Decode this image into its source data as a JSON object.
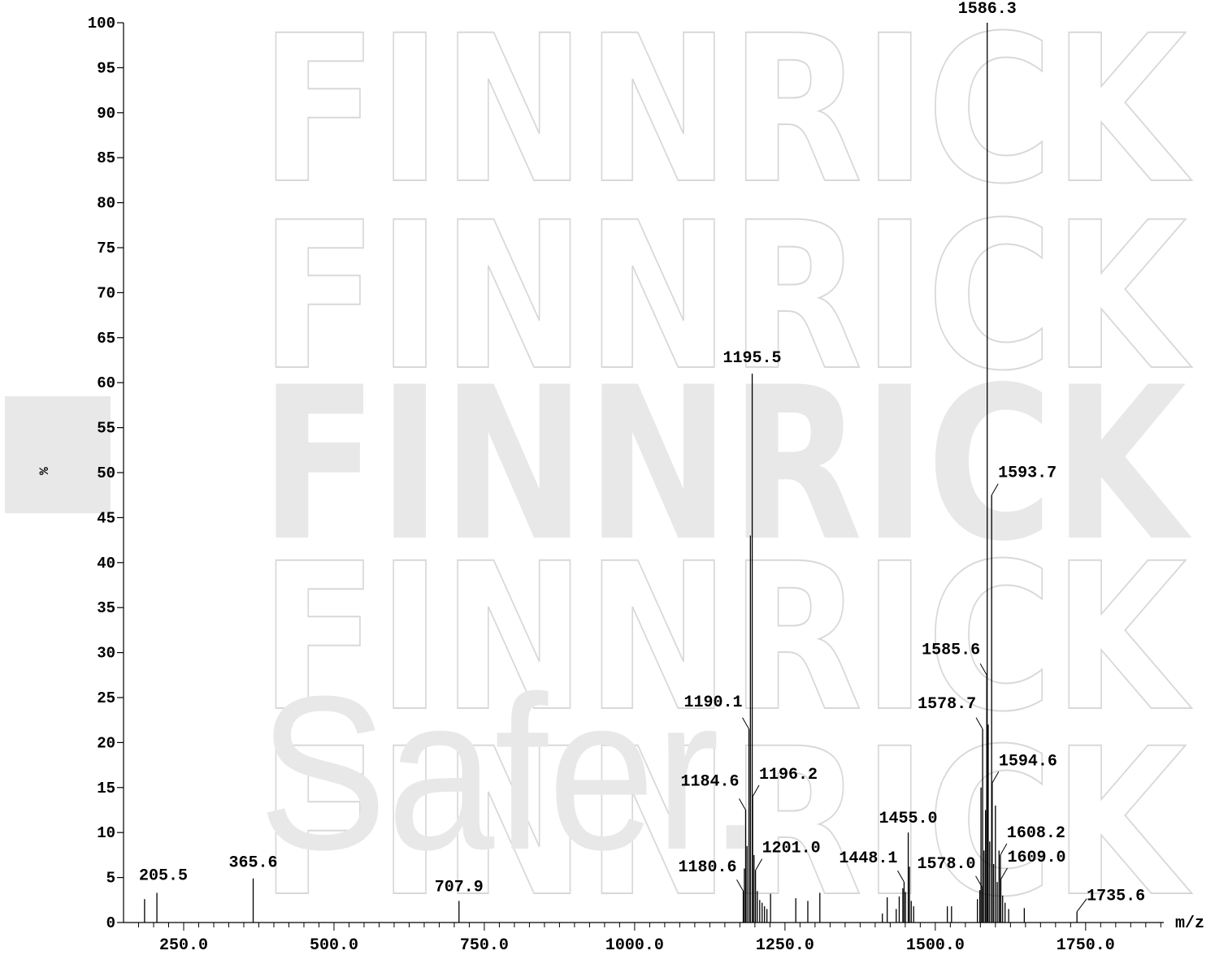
{
  "chart_data": {
    "type": "bar",
    "title": "",
    "xlabel": "m/z",
    "ylabel": "%",
    "xlim": [
      150,
      1880
    ],
    "ylim": [
      0,
      100
    ],
    "x_ticks": [
      "250.0",
      "500.0",
      "750.0",
      "1000.0",
      "1250.0",
      "1500.0",
      "1750.0"
    ],
    "y_ticks": [
      "0",
      "5",
      "10",
      "15",
      "20",
      "25",
      "30",
      "35",
      "40",
      "45",
      "50",
      "55",
      "60",
      "65",
      "70",
      "75",
      "80",
      "85",
      "90",
      "95",
      "100"
    ],
    "peaks": [
      {
        "x": 185,
        "y": 2.6
      },
      {
        "x": 205.5,
        "y": 3.3,
        "label": "205.5"
      },
      {
        "x": 365.6,
        "y": 4.9,
        "label": "365.6"
      },
      {
        "x": 707.9,
        "y": 2.4,
        "label": "707.9"
      },
      {
        "x": 1180.6,
        "y": 3.5,
        "label": "1180.6"
      },
      {
        "x": 1182.5,
        "y": 6.0
      },
      {
        "x": 1184.6,
        "y": 12.5,
        "label": "1184.6"
      },
      {
        "x": 1187.0,
        "y": 8.5
      },
      {
        "x": 1190.1,
        "y": 21.5,
        "label": "1190.1"
      },
      {
        "x": 1192.5,
        "y": 43.0
      },
      {
        "x": 1195.5,
        "y": 61.0,
        "label": "1195.5"
      },
      {
        "x": 1196.2,
        "y": 14.0,
        "label": "1196.2"
      },
      {
        "x": 1198.5,
        "y": 7.5
      },
      {
        "x": 1201.0,
        "y": 5.8,
        "label": "1201.0"
      },
      {
        "x": 1204.0,
        "y": 3.5
      },
      {
        "x": 1208.0,
        "y": 2.5
      },
      {
        "x": 1212.0,
        "y": 2.2
      },
      {
        "x": 1216.0,
        "y": 1.8
      },
      {
        "x": 1220.0,
        "y": 1.5
      },
      {
        "x": 1226.0,
        "y": 3.2
      },
      {
        "x": 1268.0,
        "y": 2.7
      },
      {
        "x": 1288.0,
        "y": 2.4
      },
      {
        "x": 1308.0,
        "y": 3.3
      },
      {
        "x": 1412.0,
        "y": 1.0
      },
      {
        "x": 1420.0,
        "y": 2.8
      },
      {
        "x": 1435.0,
        "y": 1.5
      },
      {
        "x": 1440.0,
        "y": 2.9
      },
      {
        "x": 1446.0,
        "y": 3.8
      },
      {
        "x": 1448.1,
        "y": 4.5,
        "label": "1448.1"
      },
      {
        "x": 1450.5,
        "y": 3.4
      },
      {
        "x": 1455.0,
        "y": 10.0,
        "label": "1455.0"
      },
      {
        "x": 1457.0,
        "y": 6.2
      },
      {
        "x": 1460.0,
        "y": 2.4
      },
      {
        "x": 1464.0,
        "y": 1.8
      },
      {
        "x": 1520.0,
        "y": 1.8
      },
      {
        "x": 1527.0,
        "y": 1.8
      },
      {
        "x": 1570.0,
        "y": 2.6
      },
      {
        "x": 1574.0,
        "y": 3.6
      },
      {
        "x": 1576.0,
        "y": 15.0
      },
      {
        "x": 1578.0,
        "y": 3.9,
        "label": "1578.0"
      },
      {
        "x": 1578.7,
        "y": 21.5,
        "label": "1578.7"
      },
      {
        "x": 1581.0,
        "y": 8.0
      },
      {
        "x": 1583.5,
        "y": 12.5
      },
      {
        "x": 1585.6,
        "y": 27.5,
        "label": "1585.6"
      },
      {
        "x": 1586.3,
        "y": 100.0,
        "label": "1586.3"
      },
      {
        "x": 1588.0,
        "y": 22.0
      },
      {
        "x": 1590.5,
        "y": 9.0
      },
      {
        "x": 1593.7,
        "y": 47.5,
        "label": "1593.7"
      },
      {
        "x": 1594.6,
        "y": 15.5,
        "label": "1594.6"
      },
      {
        "x": 1597.0,
        "y": 6.5
      },
      {
        "x": 1600.0,
        "y": 13.0
      },
      {
        "x": 1603.0,
        "y": 4.5
      },
      {
        "x": 1606.0,
        "y": 8.0
      },
      {
        "x": 1608.2,
        "y": 7.5,
        "label": "1608.2"
      },
      {
        "x": 1609.0,
        "y": 4.8,
        "label": "1609.0"
      },
      {
        "x": 1612.0,
        "y": 3.0
      },
      {
        "x": 1616.0,
        "y": 2.2
      },
      {
        "x": 1622.0,
        "y": 1.5
      },
      {
        "x": 1648.0,
        "y": 1.6
      },
      {
        "x": 1735.6,
        "y": 1.2,
        "label": "1735.6"
      }
    ]
  },
  "watermark": {
    "brand": "FINNRICK",
    "tagline": "Safer.",
    "color": "#e8e8e8",
    "outline_color": "#d8d8d8"
  }
}
